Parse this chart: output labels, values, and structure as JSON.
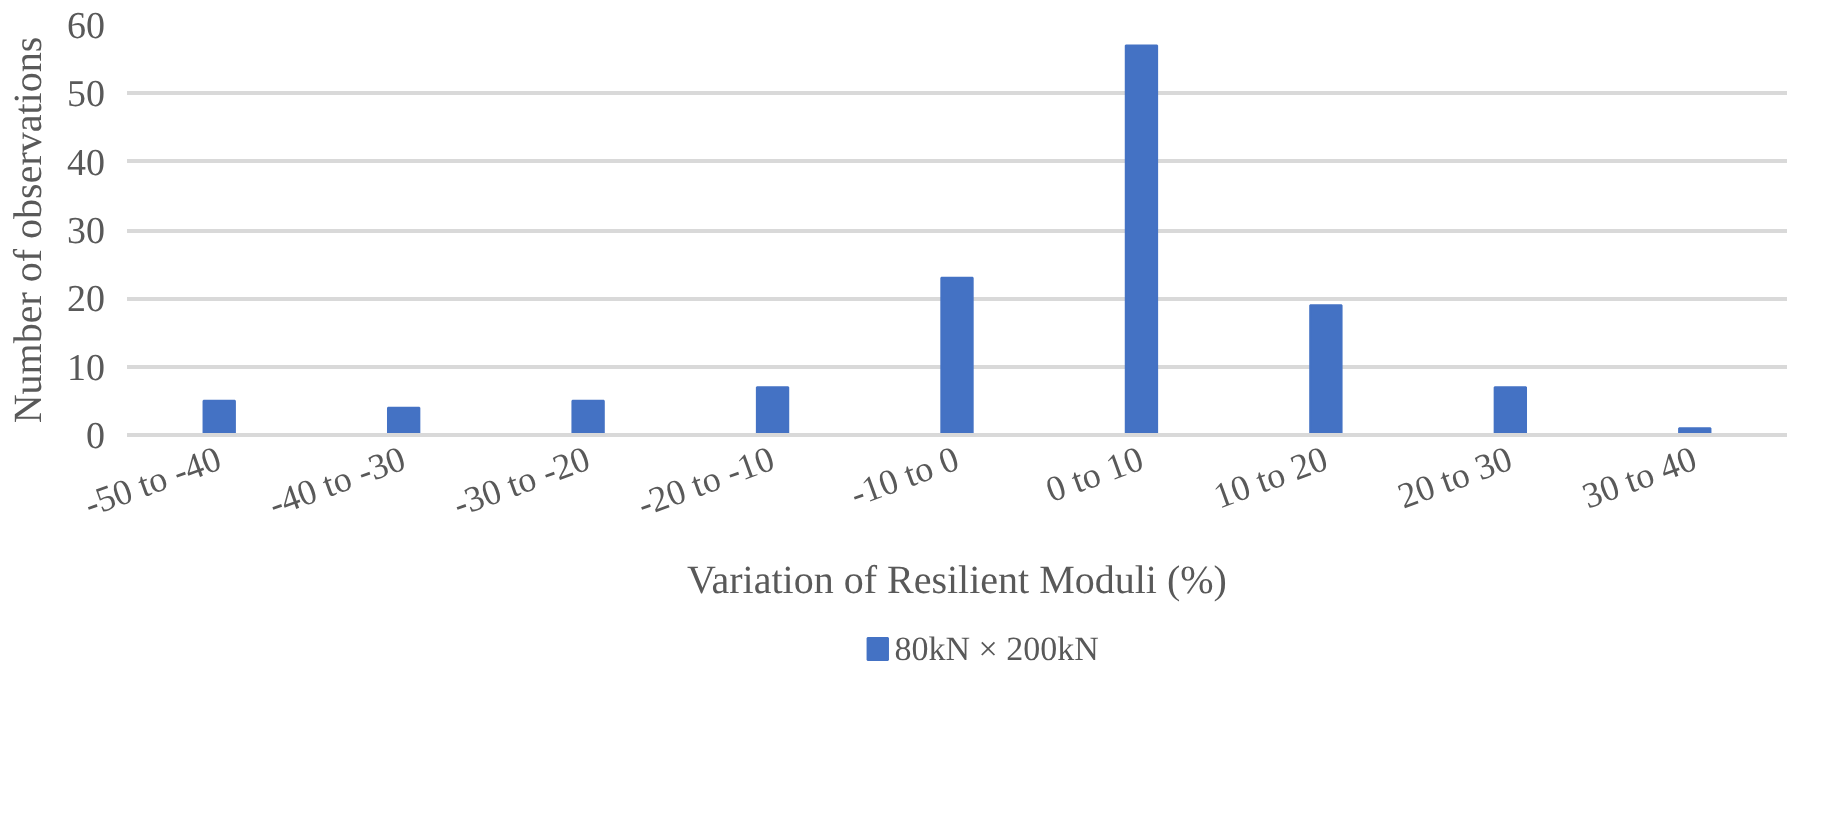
{
  "chart_data": {
    "type": "bar",
    "xlabel": "Variation of Resilient Moduli (%)",
    "ylabel": "Number of observations",
    "categories": [
      "-50 to -40",
      "-40 to -30",
      "-30 to -20",
      "-20 to -10",
      "-10 to 0",
      "0 to 10",
      "10 to 20",
      "20 to 30",
      "30 to 40"
    ],
    "series": [
      {
        "name": "80kN × 200kN",
        "color": "#4472c4",
        "values": [
          5,
          4,
          5,
          7,
          23,
          57,
          19,
          7,
          1
        ]
      }
    ],
    "ylim": [
      0,
      60
    ],
    "yticks": [
      0,
      10,
      20,
      30,
      40,
      50,
      60
    ],
    "grid": "y",
    "legend": "bottom"
  }
}
